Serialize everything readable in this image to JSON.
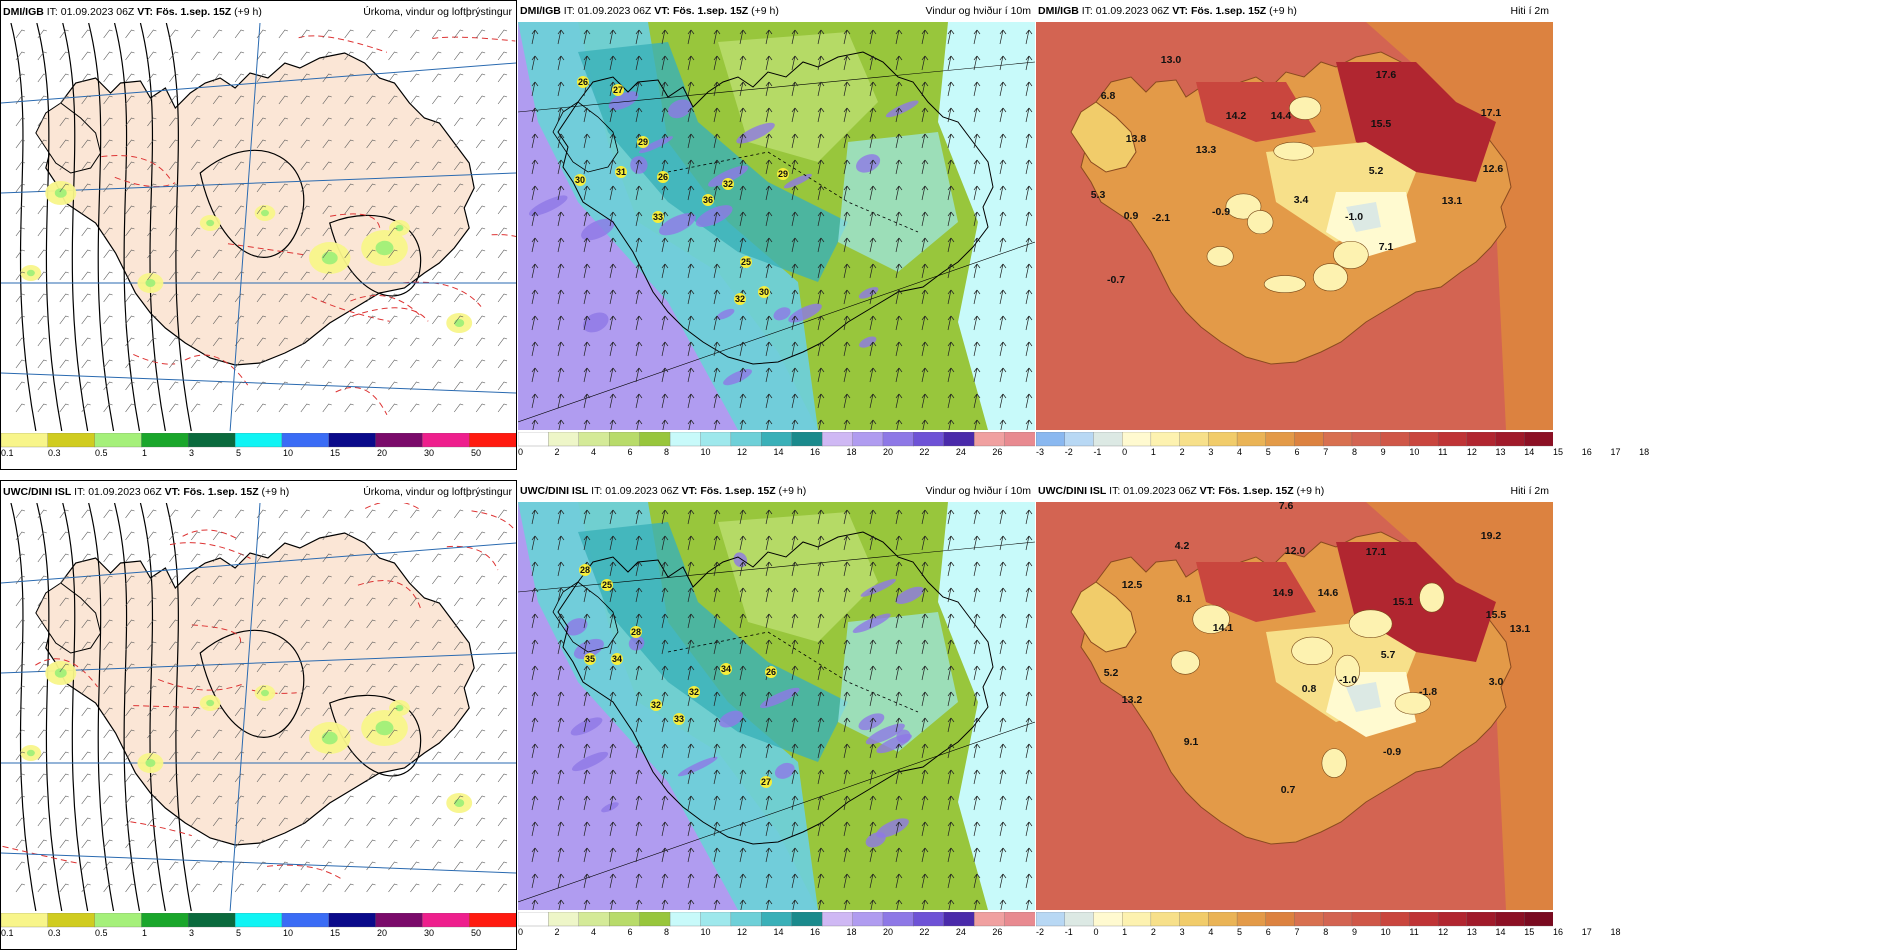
{
  "panels": [
    {
      "id": "p1",
      "kind": "precip",
      "model": "DMI/IGB",
      "it_label": "IT:",
      "it_value": "01.09.2023 06Z",
      "vt_label": "VT:",
      "vt_value": "Fös. 1.sep. 15Z",
      "lead": "(+9 h)",
      "title": "Úrkoma, vindur og loftþrýstingur",
      "colorbar": {
        "colors": [
          "#f8f58a",
          "#d0cc20",
          "#a5f07a",
          "#1aa62b",
          "#0a6a3d",
          "#10f4f4",
          "#3a6cf5",
          "#0a0a8a",
          "#7a0a6a",
          "#ee1f8d",
          "#ff1a10"
        ],
        "ticks": [
          "0.1",
          "0.3",
          "0.5",
          "1",
          "3",
          "5",
          "10",
          "15",
          "20",
          "30",
          "50"
        ]
      },
      "map_labels": []
    },
    {
      "id": "p2",
      "kind": "wind",
      "model": "DMI/IGB",
      "it_label": "IT:",
      "it_value": "01.09.2023 06Z",
      "vt_label": "VT:",
      "vt_value": "Fös. 1.sep. 15Z",
      "lead": "(+9 h)",
      "title": "Vindur og hviður í 10m",
      "colorbar": {
        "colors": [
          "#ffffff",
          "#eef6c8",
          "#d4ea98",
          "#b8db6a",
          "#98c63c",
          "#c8fafa",
          "#9ee8ec",
          "#6ed0d8",
          "#3ab0b8",
          "#1a8a8c",
          "#cfb8f4",
          "#b09cf0",
          "#8e78e6",
          "#6e52d6",
          "#4a2aaa",
          "#f0a0a0",
          "#e88a90"
        ],
        "ticks": [
          "0",
          "2",
          "4",
          "6",
          "8",
          "10",
          "12",
          "14",
          "16",
          "18",
          "20",
          "22",
          "24",
          "26"
        ]
      },
      "map_labels": [
        "26",
        "27",
        "29",
        "30",
        "31",
        "26",
        "32",
        "29",
        "36",
        "33",
        "25",
        "32",
        "30"
      ]
    },
    {
      "id": "p3",
      "kind": "temp",
      "model": "DMI/IGB",
      "it_label": "IT:",
      "it_value": "01.09.2023 06Z",
      "vt_label": "VT:",
      "vt_value": "Fös. 1.sep. 15Z",
      "lead": "(+9 h)",
      "title": "Hiti í 2m",
      "colorbar": {
        "colors": [
          "#8ab8f0",
          "#b8d8f4",
          "#dce9e4",
          "#fffad0",
          "#fdf2b0",
          "#f7e08a",
          "#f1cc6a",
          "#eab456",
          "#e39a48",
          "#dc8240",
          "#d87050",
          "#d36452",
          "#cf5748",
          "#c9463e",
          "#bf3436",
          "#b12630",
          "#a01a2a",
          "#8c1024"
        ],
        "ticks": [
          "-3",
          "-2",
          "-1",
          "0",
          "1",
          "2",
          "3",
          "4",
          "5",
          "6",
          "7",
          "8",
          "9",
          "10",
          "11",
          "12",
          "13",
          "14",
          "15",
          "16",
          "17",
          "18"
        ]
      },
      "map_labels": [
        "13.0",
        "17.6",
        "6.8",
        "14.2",
        "14.4",
        "15.5",
        "17.1",
        "13.8",
        "13.3",
        "12.6",
        "5.2",
        "5.3",
        "0.9",
        "-0.9",
        "3.4",
        "13.1",
        "-2.1",
        "-1.0",
        "7.1",
        "-0.7"
      ]
    },
    {
      "id": "p4",
      "kind": "precip",
      "model": "UWC/DINI ISL",
      "it_label": "IT:",
      "it_value": "01.09.2023 06Z",
      "vt_label": "VT:",
      "vt_value": "Fös. 1.sep. 15Z",
      "lead": "(+9 h)",
      "title": "Úrkoma, vindur og loftþrýstingur",
      "colorbar": {
        "colors": [
          "#f8f58a",
          "#d0cc20",
          "#a5f07a",
          "#1aa62b",
          "#0a6a3d",
          "#10f4f4",
          "#3a6cf5",
          "#0a0a8a",
          "#7a0a6a",
          "#ee1f8d",
          "#ff1a10"
        ],
        "ticks": [
          "0.1",
          "0.3",
          "0.5",
          "1",
          "3",
          "5",
          "10",
          "15",
          "20",
          "30",
          "50"
        ]
      },
      "map_labels": []
    },
    {
      "id": "p5",
      "kind": "wind",
      "model": "UWC/DINI ISL",
      "it_label": "IT:",
      "it_value": "01.09.2023 06Z",
      "vt_label": "VT:",
      "vt_value": "Fös. 1.sep. 15Z",
      "lead": "(+9 h)",
      "title": "Vindur og hviður í 10m",
      "colorbar": {
        "colors": [
          "#ffffff",
          "#eef6c8",
          "#d4ea98",
          "#b8db6a",
          "#98c63c",
          "#c8fafa",
          "#9ee8ec",
          "#6ed0d8",
          "#3ab0b8",
          "#1a8a8c",
          "#cfb8f4",
          "#b09cf0",
          "#8e78e6",
          "#6e52d6",
          "#4a2aaa",
          "#f0a0a0",
          "#e88a90"
        ],
        "ticks": [
          "0",
          "2",
          "4",
          "6",
          "8",
          "10",
          "12",
          "14",
          "16",
          "18",
          "20",
          "22",
          "24",
          "26"
        ]
      },
      "map_labels": [
        "28",
        "25",
        "28",
        "35",
        "34",
        "34",
        "32",
        "26",
        "32",
        "33",
        "27"
      ]
    },
    {
      "id": "p6",
      "kind": "temp",
      "model": "UWC/DINI ISL",
      "it_label": "IT:",
      "it_value": "01.09.2023 06Z",
      "vt_label": "VT:",
      "vt_value": "Fös. 1.sep. 15Z",
      "lead": "(+9 h)",
      "title": "Hiti í 2m",
      "colorbar": {
        "colors": [
          "#b8d8f4",
          "#dce9e4",
          "#fffad0",
          "#fdf2b0",
          "#f7e08a",
          "#f1cc6a",
          "#eab456",
          "#e39a48",
          "#dc8240",
          "#d87050",
          "#d36452",
          "#cf5748",
          "#c9463e",
          "#bf3436",
          "#b12630",
          "#a01a2a",
          "#8c1024",
          "#7a0a20"
        ],
        "ticks": [
          "-2",
          "-1",
          "0",
          "1",
          "2",
          "3",
          "4",
          "5",
          "6",
          "7",
          "8",
          "9",
          "10",
          "11",
          "12",
          "13",
          "14",
          "15",
          "16",
          "17",
          "18"
        ]
      },
      "map_labels": [
        "7.6",
        "4.2",
        "12.0",
        "17.1",
        "19.2",
        "12.5",
        "8.1",
        "14.9",
        "14.6",
        "15.1",
        "15.5",
        "13.1",
        "14.1",
        "5.7",
        "5.2",
        "0.8",
        "-1.0",
        "-1.8",
        "3.0",
        "13.2",
        "9.1",
        "-0.9",
        "0.7"
      ]
    }
  ]
}
